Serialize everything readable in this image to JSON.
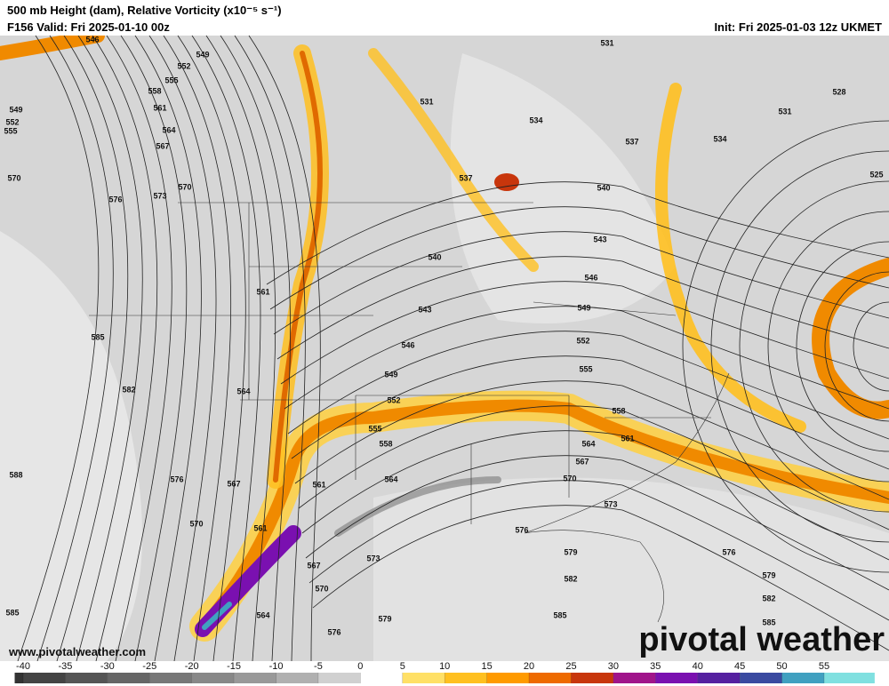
{
  "header": {
    "title": "500 mb Height (dam), Relative Vorticity (x10⁻⁵ s⁻¹)",
    "valid": "F156 Valid: Fri 2025-01-10 00z",
    "init": "Init: Fri 2025-01-03 12z UKMET"
  },
  "contour_labels": [
    546,
    549,
    552,
    555,
    558,
    561,
    564,
    567,
    570,
    573,
    576,
    549,
    552,
    555,
    570,
    561,
    585,
    582,
    564,
    588,
    576,
    567,
    570,
    561,
    567,
    570,
    564,
    585,
    576,
    579,
    573,
    561,
    564,
    558,
    555,
    552,
    549,
    546,
    543,
    540,
    537,
    531,
    534,
    531,
    537,
    540,
    543,
    546,
    549,
    552,
    555,
    558,
    561,
    564,
    567,
    570,
    573,
    576,
    579,
    582,
    585,
    576,
    579,
    582,
    585,
    534,
    531,
    528,
    525
  ],
  "website": "www.pivotalweather.com",
  "logo": "pivotal weather",
  "colorbar": {
    "lim": [
      -41,
      61
    ],
    "ticks": [
      -40,
      -35,
      -30,
      -25,
      -20,
      -15,
      -10,
      -5,
      0,
      5,
      10,
      15,
      20,
      25,
      30,
      35,
      40,
      45,
      50,
      55
    ],
    "colors": [
      "#333333",
      "#444444",
      "#555555",
      "#666666",
      "#777777",
      "#888888",
      "#999999",
      "#b0b0b0",
      "#d0d0d0",
      "#ffffff",
      "#ffe066",
      "#ffc020",
      "#ff9a00",
      "#ee6a00",
      "#c8360c",
      "#a0148a",
      "#7a10b0",
      "#5520a0",
      "#3a4aa0",
      "#40a0c0",
      "#80e0e0"
    ]
  }
}
